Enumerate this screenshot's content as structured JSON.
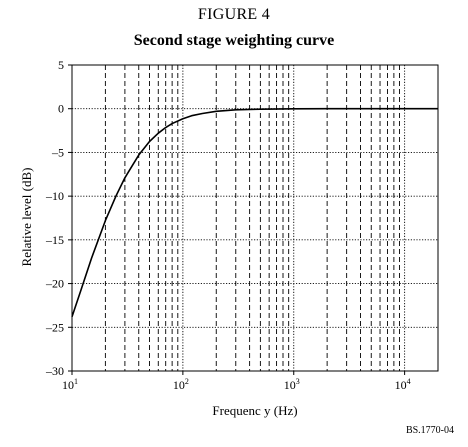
{
  "figure_label": "FIGURE 4",
  "figure_code": "BS.1770-04",
  "chart_data": {
    "type": "line",
    "title": "Second stage weighting curve",
    "xlabel": "Frequenc y (Hz)",
    "ylabel": "Relative level (dB)",
    "x_scale": "log",
    "xlim": [
      10,
      20000
    ],
    "ylim": [
      -30,
      5
    ],
    "grid": true,
    "x_ticks": [
      {
        "value": 10,
        "base": "10",
        "exp": "1"
      },
      {
        "value": 100,
        "base": "10",
        "exp": "2"
      },
      {
        "value": 1000,
        "base": "10",
        "exp": "3"
      },
      {
        "value": 10000,
        "base": "10",
        "exp": "4"
      }
    ],
    "y_ticks": [
      {
        "value": 5,
        "label": "5"
      },
      {
        "value": 0,
        "label": "0"
      },
      {
        "value": -5,
        "label": "–5"
      },
      {
        "value": -10,
        "label": "–10"
      },
      {
        "value": -15,
        "label": "–15"
      },
      {
        "value": -20,
        "label": "–20"
      },
      {
        "value": -25,
        "label": "–25"
      },
      {
        "value": -30,
        "label": "–30"
      }
    ],
    "series": [
      {
        "color": "#000000",
        "x": [
          10,
          12,
          15,
          20,
          25,
          30,
          40,
          50,
          60,
          70,
          80,
          100,
          120,
          150,
          200,
          300,
          400,
          500,
          1000,
          2000,
          5000,
          10000,
          20000
        ],
        "y": [
          -23.8,
          -20.8,
          -17.1,
          -12.8,
          -9.95,
          -7.9,
          -5.3,
          -3.75,
          -2.8,
          -2.15,
          -1.7,
          -1.15,
          -0.8,
          -0.55,
          -0.3,
          -0.13,
          -0.08,
          -0.05,
          -0.01,
          0,
          0,
          0,
          0
        ]
      }
    ]
  }
}
